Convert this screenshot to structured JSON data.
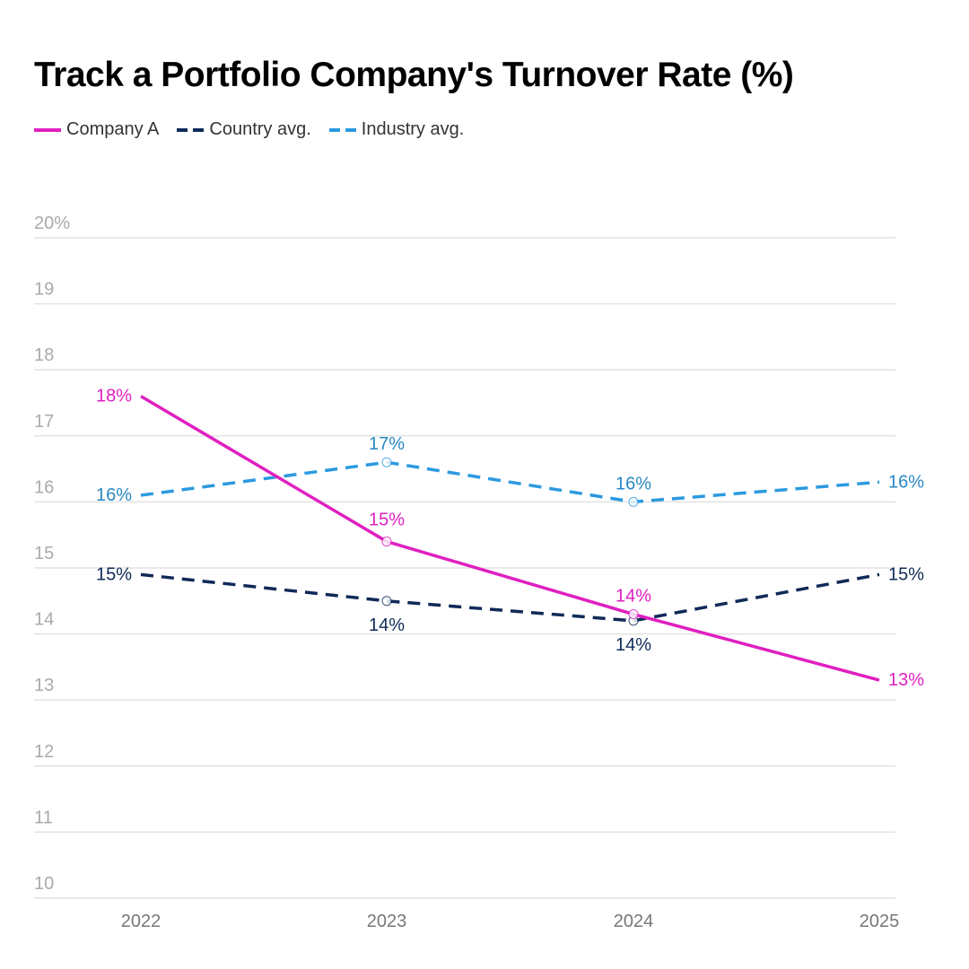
{
  "chart_data": {
    "type": "line",
    "title": "Track a Portfolio Company's Turnover Rate (%)",
    "xlabel": "",
    "ylabel": "",
    "x": [
      "2022",
      "2023",
      "2024",
      "2025"
    ],
    "ylim": [
      10,
      20
    ],
    "yticks": [
      "10",
      "11",
      "12",
      "13",
      "14",
      "15",
      "16",
      "17",
      "18",
      "19",
      "20%"
    ],
    "grid": true,
    "legend_position": "top-left",
    "series": [
      {
        "name": "Company A",
        "color": "#e020c0",
        "style": "solid",
        "values": [
          17.6,
          15.4,
          14.3,
          13.3
        ],
        "labels": [
          "18%",
          "15%",
          "14%",
          "13%"
        ]
      },
      {
        "name": "Country avg.",
        "color": "#0f2a57",
        "style": "dashed",
        "values": [
          14.9,
          14.5,
          14.2,
          14.9
        ],
        "labels": [
          "15%",
          "14%",
          "14%",
          "15%"
        ]
      },
      {
        "name": "Industry avg.",
        "color": "#2b9ae0",
        "style": "dashed",
        "values": [
          16.1,
          16.6,
          16.0,
          16.3
        ],
        "labels": [
          "16%",
          "17%",
          "16%",
          "16%"
        ]
      }
    ]
  }
}
